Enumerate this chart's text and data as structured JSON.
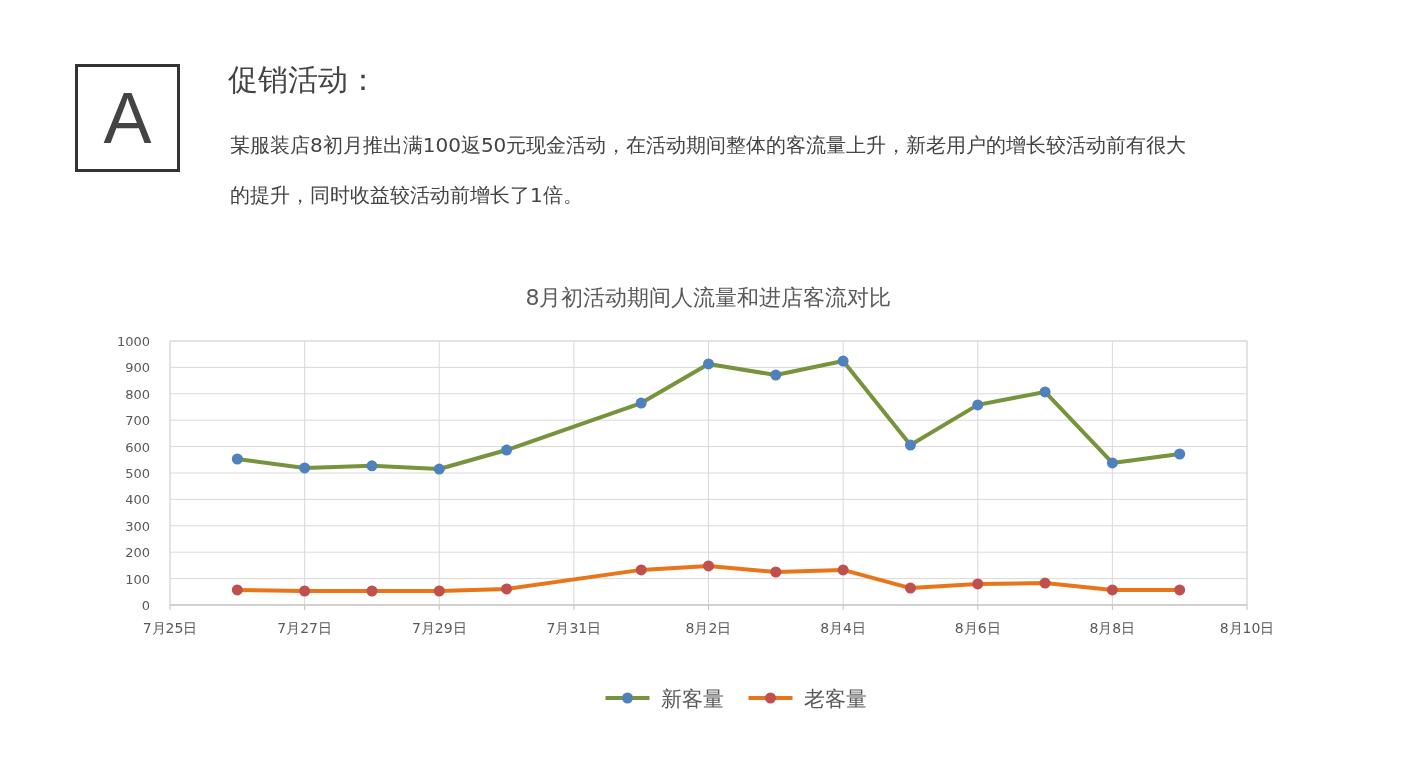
{
  "chart_data": {
    "type": "line",
    "title": "8月初活动期间人流量和进店客流对比",
    "annotations": [
      "A",
      "促销活动：",
      "某服装店8初月推出满100返50元现金活动，在活动期间整体的客流量上升，新老用户的增长较活动前有很大的提升，同时收益较活动前增长了1倍。"
    ],
    "x": [
      "--07-26",
      "--07-27",
      "--07-28",
      "--07-29",
      "--07-30",
      "--08-01",
      "--08-02",
      "--08-03",
      "--08-04",
      "--08-05",
      "--08-06",
      "--08-07",
      "--08-08",
      "--08-09"
    ],
    "series": [
      {
        "name": "新客量",
        "color": "#77933c",
        "values": [
          553,
          519,
          527,
          515,
          587,
          765,
          913,
          871,
          924,
          606,
          758,
          807,
          538,
          572
        ]
      },
      {
        "name": "老客量",
        "color": "#e8751a",
        "values": [
          57,
          53,
          53,
          53,
          61,
          133,
          148,
          125,
          133,
          64,
          80,
          83,
          57,
          57
        ]
      }
    ],
    "xlim": [
      "--07-25",
      "--08-10"
    ],
    "xticks": [
      {
        "value": "--07-25",
        "label": "7月25日"
      },
      {
        "value": "--07-27",
        "label": "7月27日"
      },
      {
        "value": "--07-29",
        "label": "7月29日"
      },
      {
        "value": "--07-31",
        "label": "7月31日"
      },
      {
        "value": "--08-02",
        "label": "8月2日"
      },
      {
        "value": "--08-04",
        "label": "8月4日"
      },
      {
        "value": "--08-06",
        "label": "8月6日"
      },
      {
        "value": "--08-08",
        "label": "8月8日"
      },
      {
        "value": "--08-10",
        "label": "8月10日"
      }
    ],
    "ylim": [
      0,
      1000
    ],
    "yticks": [
      0,
      100,
      200,
      300,
      400,
      500,
      600,
      700,
      800,
      900,
      1000
    ],
    "grid": true,
    "legend": "bottom",
    "marker": "circle",
    "line_style": "solid"
  }
}
